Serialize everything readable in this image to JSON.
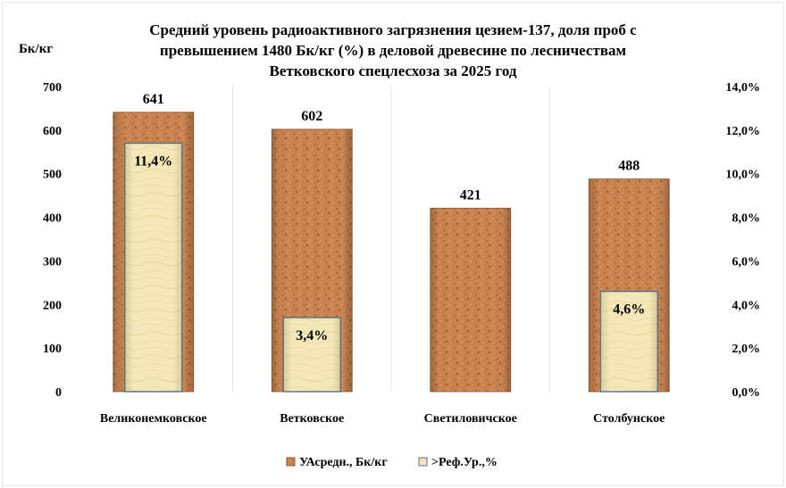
{
  "chart_data": {
    "type": "bar",
    "title_lines": [
      "Средний уровень радиоактивного загрязнения цезием-137, доля проб с",
      "превышением 1480 Бк/кг (%) в деловой древесине  по лесничествам",
      "Ветковского спецлесхоза за 2025 год"
    ],
    "y_unit_label": "Бк/кг",
    "categories": [
      "Великонемковское",
      "Ветковское",
      "Светиловичское",
      "Столбунское"
    ],
    "series": [
      {
        "name": "УАсредн., Бк/кг",
        "axis": "left",
        "values": [
          641,
          602,
          421,
          488
        ],
        "labels": [
          "641",
          "602",
          "421",
          "488"
        ],
        "color": "#c6814e"
      },
      {
        "name": ">Реф.Ур.,%",
        "axis": "right",
        "values": [
          11.4,
          3.4,
          null,
          4.6
        ],
        "labels": [
          "11,4%",
          "3,4%",
          "",
          "4,6%"
        ],
        "color": "#f3e6b0"
      }
    ],
    "y_left": {
      "min": 0,
      "max": 700,
      "step": 100,
      "ticks": [
        "0",
        "100",
        "200",
        "300",
        "400",
        "500",
        "600",
        "700"
      ]
    },
    "y_right": {
      "min": 0,
      "max": 14,
      "step": 2,
      "ticks": [
        "0,0%",
        "2,0%",
        "4,0%",
        "6,0%",
        "8,0%",
        "10,0%",
        "12,0%",
        "14,0%"
      ]
    },
    "grid": false,
    "category_separators": true,
    "legend_position": "bottom"
  }
}
